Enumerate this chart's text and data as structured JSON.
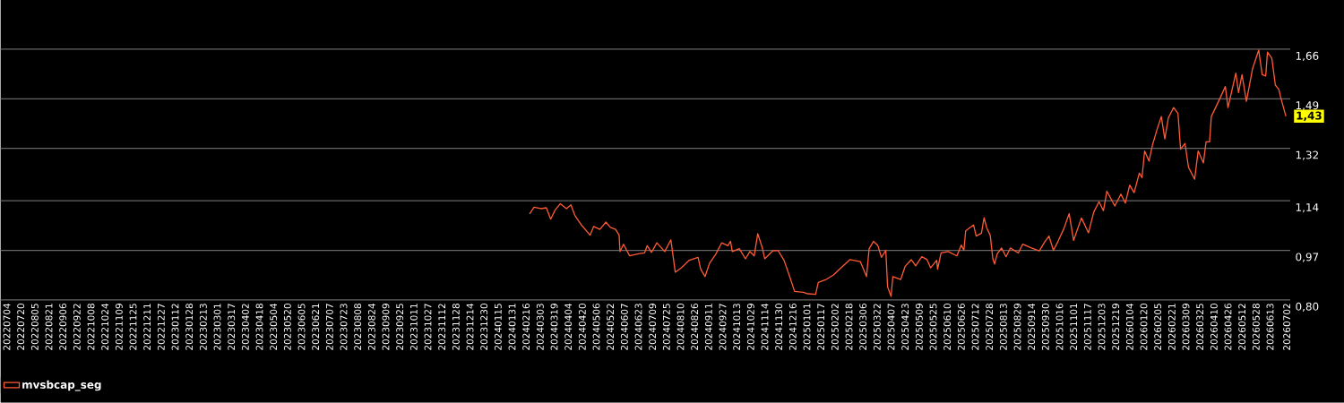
{
  "chart_data": {
    "type": "line",
    "x": [
      "2024-02-20",
      "2024-02-25",
      "2024-03-04",
      "2024-03-10",
      "2024-03-15",
      "2024-03-20",
      "2024-03-26",
      "2024-04-02",
      "2024-04-07",
      "2024-04-12",
      "2024-04-19",
      "2024-04-29",
      "2024-05-03",
      "2024-05-10",
      "2024-05-17",
      "2024-05-22",
      "2024-05-28",
      "2024-06-01",
      "2024-06-02",
      "2024-06-06",
      "2024-06-13",
      "2024-06-23",
      "2024-06-30",
      "2024-07-03",
      "2024-07-08",
      "2024-07-14",
      "2024-07-23",
      "2024-07-30",
      "2024-08-04",
      "2024-08-11",
      "2024-08-20",
      "2024-08-30",
      "2024-09-02",
      "2024-09-07",
      "2024-09-12",
      "2024-09-19",
      "2024-09-26",
      "2024-10-03",
      "2024-10-06",
      "2024-10-08",
      "2024-10-16",
      "2024-10-23",
      "2024-10-28",
      "2024-11-02",
      "2024-11-06",
      "2024-11-11",
      "2024-11-14",
      "2024-11-23",
      "2024-11-29",
      "2024-12-06",
      "2024-12-13",
      "2024-12-18",
      "2024-12-28",
      "2025-01-02",
      "2025-01-11",
      "2025-01-14",
      "2025-01-23",
      "2025-01-31",
      "2025-02-09",
      "2025-02-19",
      "2025-03-03",
      "2025-03-10",
      "2025-03-13",
      "2025-03-18",
      "2025-03-23",
      "2025-03-27",
      "2025-04-01",
      "2025-04-03",
      "2025-04-07",
      "2025-04-09",
      "2025-04-18",
      "2025-04-23",
      "2025-04-30",
      "2025-05-05",
      "2025-05-12",
      "2025-05-18",
      "2025-05-22",
      "2025-05-29",
      "2025-05-30",
      "2025-06-03",
      "2025-06-11",
      "2025-06-21",
      "2025-06-26",
      "2025-06-29",
      "2025-07-01",
      "2025-07-10",
      "2025-07-13",
      "2025-07-19",
      "2025-07-22",
      "2025-07-25",
      "2025-07-29",
      "2025-08-01",
      "2025-08-03",
      "2025-08-06",
      "2025-08-11",
      "2025-08-16",
      "2025-08-21",
      "2025-08-30",
      "2025-09-04",
      "2025-09-14",
      "2025-09-23",
      "2025-09-29",
      "2025-10-04",
      "2025-10-09",
      "2025-10-14",
      "2025-10-21",
      "2025-10-27",
      "2025-11-01",
      "2025-11-10",
      "2025-11-18",
      "2025-11-24",
      "2025-11-30",
      "2025-12-05",
      "2025-12-09",
      "2025-12-18",
      "2025-12-25",
      "2025-12-30",
      "2026-01-04",
      "2026-01-09",
      "2026-01-15",
      "2026-01-18",
      "2026-01-21",
      "2026-01-26",
      "2026-01-30",
      "2026-02-04",
      "2026-02-09",
      "2026-02-13",
      "2026-02-17",
      "2026-02-23",
      "2026-02-28",
      "2026-03-03",
      "2026-03-08",
      "2026-03-12",
      "2026-03-19",
      "2026-03-23",
      "2026-03-29",
      "2026-04-01",
      "2026-04-05",
      "2026-04-07",
      "2026-04-16",
      "2026-04-23",
      "2026-04-26",
      "2026-05-05",
      "2026-05-08",
      "2026-05-12",
      "2026-05-17",
      "2026-05-24",
      "2026-05-31",
      "2026-06-04",
      "2026-06-08",
      "2026-06-10",
      "2026-06-15",
      "2026-06-19",
      "2026-06-23",
      "2026-06-25",
      "2026-07-01"
    ],
    "series": [
      {
        "name": "mvsbcap_seg",
        "color": "#ff5a36",
        "values": [
          1.095,
          1.118,
          1.113,
          1.116,
          1.077,
          1.108,
          1.13,
          1.113,
          1.126,
          1.087,
          1.057,
          1.022,
          1.052,
          1.042,
          1.067,
          1.049,
          1.042,
          1.022,
          0.966,
          0.991,
          0.951,
          0.958,
          0.961,
          0.986,
          0.963,
          0.996,
          0.966,
          1.006,
          0.895,
          0.91,
          0.936,
          0.946,
          0.905,
          0.88,
          0.925,
          0.956,
          0.996,
          0.986,
          1.001,
          0.966,
          0.976,
          0.941,
          0.966,
          0.951,
          1.027,
          0.981,
          0.941,
          0.968,
          0.97,
          0.936,
          0.875,
          0.829,
          0.826,
          0.821,
          0.819,
          0.86,
          0.87,
          0.885,
          0.91,
          0.938,
          0.931,
          0.88,
          0.976,
          1.001,
          0.986,
          0.946,
          0.97,
          0.845,
          0.812,
          0.88,
          0.87,
          0.915,
          0.938,
          0.917,
          0.948,
          0.938,
          0.91,
          0.936,
          0.905,
          0.961,
          0.966,
          0.951,
          0.988,
          0.97,
          1.037,
          1.057,
          1.019,
          1.029,
          1.082,
          1.047,
          1.022,
          0.941,
          0.923,
          0.958,
          0.978,
          0.948,
          0.978,
          0.961,
          0.991,
          0.978,
          0.968,
          0.998,
          1.019,
          0.97,
          0.999,
          1.045,
          1.096,
          1.004,
          1.081,
          1.03,
          1.101,
          1.137,
          1.106,
          1.173,
          1.122,
          1.163,
          1.132,
          1.194,
          1.168,
          1.235,
          1.219,
          1.311,
          1.276,
          1.332,
          1.383,
          1.429,
          1.352,
          1.424,
          1.46,
          1.44,
          1.317,
          1.337,
          1.255,
          1.214,
          1.311,
          1.27,
          1.342,
          1.342,
          1.429,
          1.486,
          1.532,
          1.46,
          1.578,
          1.511,
          1.573,
          1.481,
          1.593,
          1.657,
          1.573,
          1.568,
          1.65,
          1.629,
          1.537,
          1.522,
          1.496,
          1.43
        ]
      }
    ],
    "xlim": [
      "2022-06-27",
      "2026-07-06"
    ],
    "xticks": [
      {
        "value": "2022-07-04",
        "label": "20220704"
      },
      {
        "value": "2022-07-20",
        "label": "20220720"
      },
      {
        "value": "2022-08-05",
        "label": "20220805"
      },
      {
        "value": "2022-08-21",
        "label": "20220821"
      },
      {
        "value": "2022-09-06",
        "label": "20220906"
      },
      {
        "value": "2022-09-22",
        "label": "20220922"
      },
      {
        "value": "2022-10-08",
        "label": "20221008"
      },
      {
        "value": "2022-10-24",
        "label": "20221024"
      },
      {
        "value": "2022-11-09",
        "label": "20221109"
      },
      {
        "value": "2022-11-25",
        "label": "20221125"
      },
      {
        "value": "2022-12-11",
        "label": "20221211"
      },
      {
        "value": "2022-12-27",
        "label": "20221227"
      },
      {
        "value": "2023-01-12",
        "label": "20230112"
      },
      {
        "value": "2023-01-28",
        "label": "20230128"
      },
      {
        "value": "2023-02-13",
        "label": "20230213"
      },
      {
        "value": "2023-03-01",
        "label": "20230301"
      },
      {
        "value": "2023-03-17",
        "label": "20230317"
      },
      {
        "value": "2023-04-02",
        "label": "20230402"
      },
      {
        "value": "2023-04-18",
        "label": "20230418"
      },
      {
        "value": "2023-05-04",
        "label": "20230504"
      },
      {
        "value": "2023-05-20",
        "label": "20230520"
      },
      {
        "value": "2023-06-05",
        "label": "20230605"
      },
      {
        "value": "2023-06-21",
        "label": "20230621"
      },
      {
        "value": "2023-07-07",
        "label": "20230707"
      },
      {
        "value": "2023-07-23",
        "label": "20230723"
      },
      {
        "value": "2023-08-08",
        "label": "20230808"
      },
      {
        "value": "2023-08-24",
        "label": "20230824"
      },
      {
        "value": "2023-09-09",
        "label": "20230909"
      },
      {
        "value": "2023-09-25",
        "label": "20230925"
      },
      {
        "value": "2023-10-11",
        "label": "20231011"
      },
      {
        "value": "2023-10-27",
        "label": "20231027"
      },
      {
        "value": "2023-11-12",
        "label": "20231112"
      },
      {
        "value": "2023-11-28",
        "label": "20231128"
      },
      {
        "value": "2023-12-14",
        "label": "20231214"
      },
      {
        "value": "2023-12-30",
        "label": "20231230"
      },
      {
        "value": "2024-01-15",
        "label": "20240115"
      },
      {
        "value": "2024-01-31",
        "label": "20240131"
      },
      {
        "value": "2024-02-16",
        "label": "20240216"
      },
      {
        "value": "2024-03-03",
        "label": "20240303"
      },
      {
        "value": "2024-03-19",
        "label": "20240319"
      },
      {
        "value": "2024-04-04",
        "label": "20240404"
      },
      {
        "value": "2024-04-20",
        "label": "20240420"
      },
      {
        "value": "2024-05-06",
        "label": "20240506"
      },
      {
        "value": "2024-05-22",
        "label": "20240522"
      },
      {
        "value": "2024-06-07",
        "label": "20240607"
      },
      {
        "value": "2024-06-23",
        "label": "20240623"
      },
      {
        "value": "2024-07-09",
        "label": "20240709"
      },
      {
        "value": "2024-07-25",
        "label": "20240725"
      },
      {
        "value": "2024-08-10",
        "label": "20240810"
      },
      {
        "value": "2024-08-26",
        "label": "20240826"
      },
      {
        "value": "2024-09-11",
        "label": "20240911"
      },
      {
        "value": "2024-09-27",
        "label": "20240927"
      },
      {
        "value": "2024-10-13",
        "label": "20241013"
      },
      {
        "value": "2024-10-29",
        "label": "20241029"
      },
      {
        "value": "2024-11-14",
        "label": "20241114"
      },
      {
        "value": "2024-11-30",
        "label": "20241130"
      },
      {
        "value": "2024-12-16",
        "label": "20241216"
      },
      {
        "value": "2025-01-01",
        "label": "20250101"
      },
      {
        "value": "2025-01-17",
        "label": "20250117"
      },
      {
        "value": "2025-02-02",
        "label": "20250202"
      },
      {
        "value": "2025-02-18",
        "label": "20250218"
      },
      {
        "value": "2025-03-06",
        "label": "20250306"
      },
      {
        "value": "2025-03-22",
        "label": "20250322"
      },
      {
        "value": "2025-04-07",
        "label": "20250407"
      },
      {
        "value": "2025-04-23",
        "label": "20250423"
      },
      {
        "value": "2025-05-09",
        "label": "20250509"
      },
      {
        "value": "2025-05-25",
        "label": "20250525"
      },
      {
        "value": "2025-06-10",
        "label": "20250610"
      },
      {
        "value": "2025-06-26",
        "label": "20250626"
      },
      {
        "value": "2025-07-12",
        "label": "20250712"
      },
      {
        "value": "2025-07-28",
        "label": "20250728"
      },
      {
        "value": "2025-08-13",
        "label": "20250813"
      },
      {
        "value": "2025-08-29",
        "label": "20250829"
      },
      {
        "value": "2025-09-14",
        "label": "20250914"
      },
      {
        "value": "2025-09-30",
        "label": "20250930"
      },
      {
        "value": "2025-10-16",
        "label": "20251016"
      },
      {
        "value": "2025-11-01",
        "label": "20251101"
      },
      {
        "value": "2025-11-17",
        "label": "20251117"
      },
      {
        "value": "2025-12-03",
        "label": "20251203"
      },
      {
        "value": "2025-12-19",
        "label": "20251219"
      },
      {
        "value": "2026-01-04",
        "label": "20260104"
      },
      {
        "value": "2026-01-20",
        "label": "20260120"
      },
      {
        "value": "2026-02-05",
        "label": "20260205"
      },
      {
        "value": "2026-02-21",
        "label": "20260221"
      },
      {
        "value": "2026-03-09",
        "label": "20260309"
      },
      {
        "value": "2026-03-25",
        "label": "20260325"
      },
      {
        "value": "2026-04-10",
        "label": "20260410"
      },
      {
        "value": "2026-04-26",
        "label": "20260426"
      },
      {
        "value": "2026-05-12",
        "label": "20260512"
      },
      {
        "value": "2026-05-28",
        "label": "20260528"
      },
      {
        "value": "2026-06-13",
        "label": "20260613"
      },
      {
        "value": "2026-07-02",
        "label": "20260702"
      }
    ],
    "ylim": [
      0.8,
      1.66
    ],
    "yticks": [
      {
        "value": 0.8,
        "label": "0,80"
      },
      {
        "value": 0.97,
        "label": "0,97"
      },
      {
        "value": 1.14,
        "label": "1,14"
      },
      {
        "value": 1.32,
        "label": "1,32"
      },
      {
        "value": 1.49,
        "label": "1,49"
      },
      {
        "value": 1.66,
        "label": "1,66"
      }
    ],
    "grid": "y",
    "legend": "bottom left",
    "annotations": [
      {
        "text": "1,43",
        "x": "2026-07-01",
        "y": 1.43
      }
    ]
  }
}
